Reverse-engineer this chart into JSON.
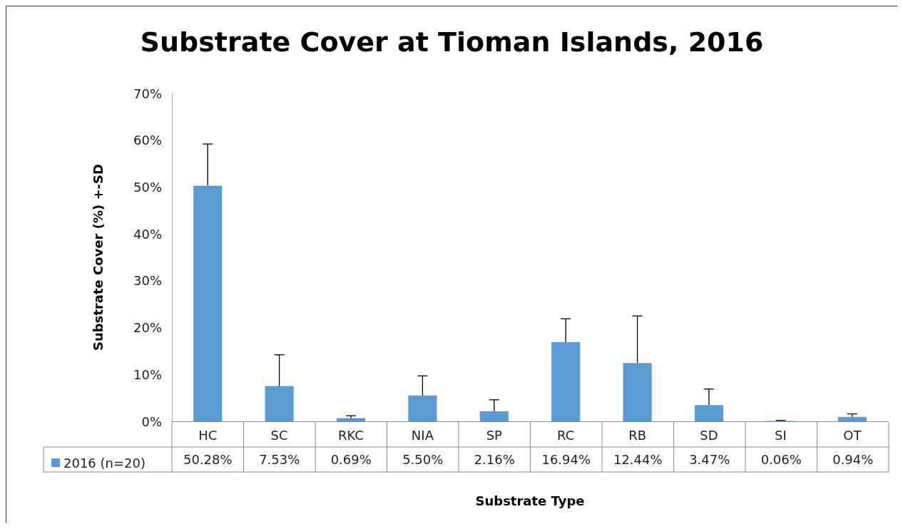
{
  "chart_data": {
    "type": "bar",
    "title": "Substrate Cover at Tioman Islands, 2016",
    "xlabel": "Substrate Type",
    "ylabel": "Substrate Cover (%) +-SD",
    "categories": [
      "HC",
      "SC",
      "RKC",
      "NIA",
      "SP",
      "RC",
      "RB",
      "SD",
      "SI",
      "OT"
    ],
    "series": [
      {
        "name": "2016 (n=20)",
        "color": "#5b9bd5",
        "values": [
          50.28,
          7.53,
          0.69,
          5.5,
          2.16,
          16.94,
          12.44,
          3.47,
          0.06,
          0.94
        ],
        "errors": [
          [
            50.28,
            59.2
          ],
          [
            7.53,
            14.2
          ],
          [
            0.69,
            1.2
          ],
          [
            5.5,
            9.7
          ],
          [
            2.16,
            4.6
          ],
          [
            16.94,
            21.9
          ],
          [
            12.44,
            22.5
          ],
          [
            3.47,
            6.9
          ],
          [
            0.06,
            0.2
          ],
          [
            0.94,
            1.6
          ]
        ],
        "value_labels": [
          "50.28%",
          "7.53%",
          "0.69%",
          "5.50%",
          "2.16%",
          "16.94%",
          "12.44%",
          "3.47%",
          "0.06%",
          "0.94%"
        ]
      }
    ],
    "ylim": [
      0,
      70
    ],
    "yticks": [
      {
        "value": 0,
        "label": "0%"
      },
      {
        "value": 10,
        "label": "10%"
      },
      {
        "value": 20,
        "label": "20%"
      },
      {
        "value": 30,
        "label": "30%"
      },
      {
        "value": 40,
        "label": "40%"
      },
      {
        "value": 50,
        "label": "50%"
      },
      {
        "value": 60,
        "label": "60%"
      },
      {
        "value": 70,
        "label": "70%"
      }
    ],
    "grid": false,
    "legend": "bottom left"
  }
}
